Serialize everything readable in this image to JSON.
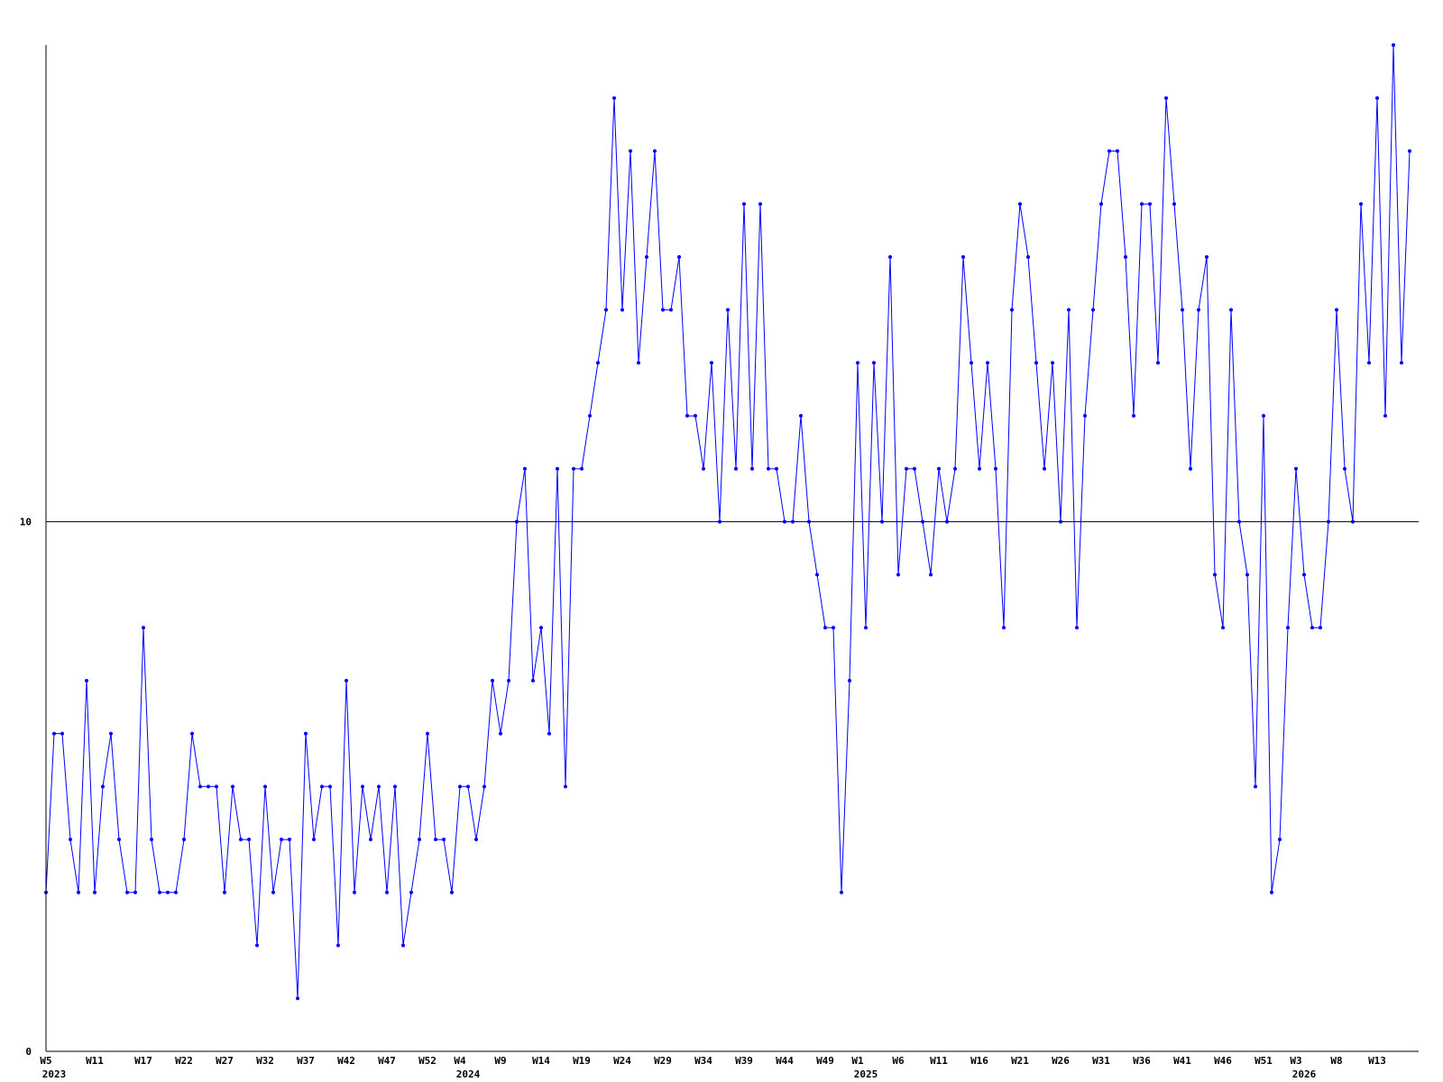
{
  "chart_data": {
    "type": "line",
    "title": "",
    "xlabel": "",
    "ylabel": "",
    "ylim": [
      0,
      19
    ],
    "y_ticks": [
      0,
      10
    ],
    "reference_lines": [
      10
    ],
    "grid": false,
    "x_ticks": [
      {
        "week": "W5",
        "year": "2023"
      },
      {
        "week": "W11",
        "year": ""
      },
      {
        "week": "W17",
        "year": ""
      },
      {
        "week": "W22",
        "year": ""
      },
      {
        "week": "W27",
        "year": ""
      },
      {
        "week": "W32",
        "year": ""
      },
      {
        "week": "W37",
        "year": ""
      },
      {
        "week": "W42",
        "year": ""
      },
      {
        "week": "W47",
        "year": ""
      },
      {
        "week": "W52",
        "year": ""
      },
      {
        "week": "W4",
        "year": "2024"
      },
      {
        "week": "W9",
        "year": ""
      },
      {
        "week": "W14",
        "year": ""
      },
      {
        "week": "W19",
        "year": ""
      },
      {
        "week": "W24",
        "year": ""
      },
      {
        "week": "W29",
        "year": ""
      },
      {
        "week": "W34",
        "year": ""
      },
      {
        "week": "W39",
        "year": ""
      },
      {
        "week": "W44",
        "year": ""
      },
      {
        "week": "W49",
        "year": ""
      },
      {
        "week": "W1",
        "year": "2025"
      },
      {
        "week": "W6",
        "year": ""
      },
      {
        "week": "W11",
        "year": ""
      },
      {
        "week": "W16",
        "year": ""
      },
      {
        "week": "W21",
        "year": ""
      },
      {
        "week": "W26",
        "year": ""
      },
      {
        "week": "W31",
        "year": ""
      },
      {
        "week": "W36",
        "year": ""
      },
      {
        "week": "W41",
        "year": ""
      },
      {
        "week": "W46",
        "year": ""
      },
      {
        "week": "W51",
        "year": ""
      },
      {
        "week": "W3",
        "year": "2026"
      },
      {
        "week": "W8",
        "year": ""
      },
      {
        "week": "W13",
        "year": ""
      }
    ],
    "series": [
      {
        "color": "#0000ff",
        "values": [
          3,
          6,
          6,
          4,
          3,
          7,
          3,
          5,
          6,
          4,
          3,
          3,
          8,
          4,
          3,
          3,
          3,
          4,
          6,
          5,
          5,
          5,
          3,
          5,
          4,
          4,
          2,
          5,
          3,
          4,
          4,
          1,
          6,
          4,
          5,
          5,
          2,
          7,
          3,
          5,
          4,
          5,
          3,
          5,
          2,
          3,
          4,
          6,
          4,
          4,
          3,
          5,
          5,
          4,
          5,
          7,
          6,
          7,
          10,
          11,
          7,
          8,
          6,
          11,
          5,
          11,
          11,
          12,
          13,
          14,
          18,
          14,
          17,
          13,
          15,
          17,
          14,
          14,
          15,
          12,
          12,
          11,
          13,
          10,
          14,
          11,
          16,
          11,
          16,
          11,
          11,
          10,
          10,
          12,
          10,
          9,
          8,
          8,
          3,
          7,
          13,
          8,
          13,
          10,
          15,
          9,
          11,
          11,
          10,
          9,
          11,
          10,
          11,
          15,
          13,
          11,
          13,
          11,
          8,
          14,
          16,
          15,
          13,
          11,
          13,
          10,
          14,
          8,
          12,
          14,
          16,
          17,
          17,
          15,
          12,
          16,
          16,
          13,
          18,
          16,
          14,
          11,
          14,
          15,
          9,
          8,
          14,
          10,
          9,
          5,
          12,
          3,
          4,
          8,
          11,
          9,
          8,
          8,
          10,
          14,
          11,
          10,
          16,
          13,
          18,
          12,
          19,
          13,
          17
        ]
      }
    ]
  }
}
